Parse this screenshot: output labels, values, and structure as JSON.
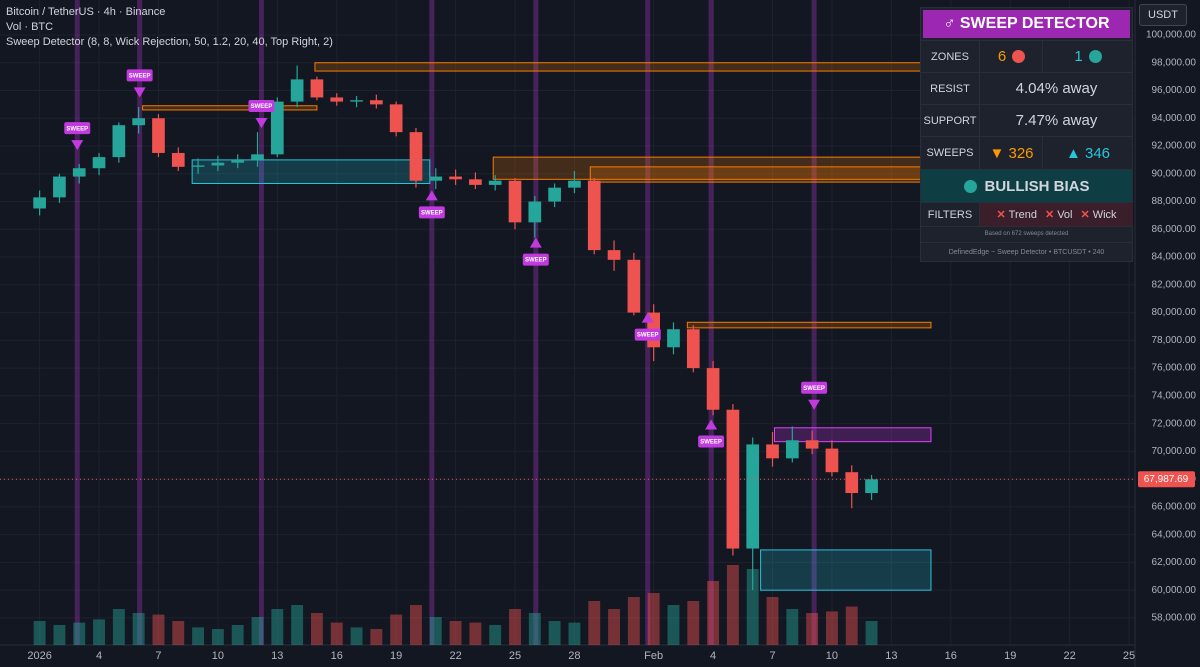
{
  "header": {
    "symbol": "Bitcoin / TetherUS · 4h · Binance",
    "volume": "Vol · BTC",
    "indicator": "Sweep Detector (8, 8, Wick Rejection, 50, 1.2, 20, 40, Top Right, 2)",
    "currency": "USDT"
  },
  "chart_data": {
    "type": "candlestick",
    "x": [
      1,
      2,
      3,
      4,
      5,
      6,
      7,
      8,
      9,
      10,
      11,
      12,
      13,
      14,
      15,
      16,
      17,
      18,
      19,
      20,
      21,
      22,
      23,
      24,
      25,
      26,
      27,
      28,
      29,
      30,
      31,
      32,
      33,
      34,
      35,
      36,
      37,
      38,
      39,
      40,
      41,
      42,
      43
    ],
    "open": [
      87500,
      88300,
      89800,
      90400,
      91200,
      93500,
      94000,
      91500,
      90500,
      90600,
      90800,
      91000,
      91400,
      95200,
      96800,
      95500,
      95200,
      95300,
      95000,
      93000,
      89500,
      89800,
      89600,
      89200,
      89500,
      86500,
      88000,
      89000,
      89500,
      84500,
      83800,
      80000,
      77500,
      78800,
      76000,
      73000,
      63000,
      70500,
      69500,
      70800,
      70200,
      68500,
      67000
    ],
    "high": [
      88800,
      90000,
      90700,
      91500,
      93700,
      94800,
      94300,
      91900,
      91100,
      91300,
      91400,
      93000,
      95500,
      97800,
      97000,
      95800,
      95600,
      95700,
      95200,
      93300,
      90400,
      90300,
      90100,
      89900,
      89700,
      88400,
      89300,
      90200,
      89700,
      85200,
      84300,
      80600,
      79300,
      79100,
      76500,
      73400,
      71000,
      71400,
      71800,
      71500,
      70800,
      69000,
      68300
    ],
    "low": [
      87000,
      87900,
      89300,
      89900,
      90800,
      92900,
      91200,
      90200,
      90000,
      90200,
      90400,
      90500,
      91200,
      94800,
      95300,
      94900,
      94800,
      94700,
      92700,
      89000,
      88900,
      89200,
      88900,
      88800,
      86000,
      85400,
      87600,
      88600,
      84200,
      83000,
      79800,
      76500,
      77000,
      75700,
      72600,
      62500,
      60000,
      68900,
      69200,
      69800,
      68200,
      65900,
      66500
    ],
    "close": [
      88300,
      89800,
      90400,
      91200,
      93500,
      94000,
      91500,
      90500,
      90600,
      90800,
      91000,
      91400,
      95200,
      96800,
      95500,
      95200,
      95300,
      95000,
      93000,
      89500,
      89800,
      89600,
      89200,
      89500,
      86500,
      88000,
      89000,
      89500,
      84500,
      83800,
      80000,
      77500,
      78800,
      76000,
      73000,
      63000,
      70500,
      69500,
      70800,
      70200,
      68500,
      67000,
      67987.69
    ],
    "volume": [
      30,
      25,
      28,
      32,
      45,
      40,
      38,
      30,
      22,
      20,
      25,
      35,
      45,
      50,
      40,
      28,
      22,
      20,
      38,
      50,
      35,
      30,
      28,
      25,
      45,
      40,
      30,
      28,
      55,
      45,
      60,
      65,
      50,
      55,
      80,
      100,
      95,
      60,
      45,
      40,
      42,
      48,
      30
    ],
    "up_color": "#26a69a",
    "down_color": "#ef5350",
    "xlim": [
      -1,
      56.3
    ],
    "ylim": [
      56050,
      102520
    ],
    "xticks": [
      {
        "value": 1,
        "label": "2026"
      },
      4,
      7,
      10,
      13,
      16,
      19,
      22,
      25,
      28,
      {
        "value": 32,
        "label": "Feb"
      },
      {
        "value": 35,
        "label": "4"
      },
      {
        "value": 38,
        "label": "7"
      },
      {
        "value": 41,
        "label": "10"
      },
      {
        "value": 44,
        "label": "13"
      },
      {
        "value": 47,
        "label": "16"
      },
      {
        "value": 50,
        "label": "19"
      },
      {
        "value": 53,
        "label": "22"
      },
      {
        "value": 56,
        "label": "25"
      }
    ],
    "yticks": [
      {
        "value": 58000,
        "label": "58,000.00"
      },
      {
        "value": 60000,
        "label": "60,000.00"
      },
      {
        "value": 62000,
        "label": "62,000.00"
      },
      {
        "value": 64000,
        "label": "64,000.00"
      },
      {
        "value": 66000,
        "label": "66,000.00"
      },
      {
        "value": 68000,
        "label": "68,000.00"
      },
      {
        "value": 70000,
        "label": "70,000.00"
      },
      {
        "value": 72000,
        "label": "72,000.00"
      },
      {
        "value": 74000,
        "label": "74,000.00"
      },
      {
        "value": 76000,
        "label": "76,000.00"
      },
      {
        "value": 78000,
        "label": "78,000.00"
      },
      {
        "value": 80000,
        "label": "80,000.00"
      },
      {
        "value": 82000,
        "label": "82,000.00"
      },
      {
        "value": 84000,
        "label": "84,000.00"
      },
      {
        "value": 86000,
        "label": "86,000.00"
      },
      {
        "value": 88000,
        "label": "88,000.00"
      },
      {
        "value": 90000,
        "label": "90,000.00"
      },
      {
        "value": 92000,
        "label": "92,000.00"
      },
      {
        "value": 94000,
        "label": "94,000.00"
      },
      {
        "value": 96000,
        "label": "96,000.00"
      },
      {
        "value": 98000,
        "label": "98,000.00"
      },
      {
        "value": 100000,
        "label": "100,000.00"
      }
    ],
    "grid": true,
    "last_price": {
      "value": 67987.69,
      "label": "67,987.69",
      "color": "#ef5350"
    },
    "zones": [
      {
        "start": 14.9,
        "end": 46,
        "low": 97400,
        "high": 98000,
        "color": "#f57c00"
      },
      {
        "start": 23.9,
        "end": 46,
        "low": 89600,
        "high": 91200,
        "color": "#f57c00"
      },
      {
        "start": 28.8,
        "end": 46,
        "low": 89400,
        "high": 90500,
        "color": "#f57c00"
      },
      {
        "start": 33.7,
        "end": 46,
        "low": 78900,
        "high": 79300,
        "color": "#f57c00"
      },
      {
        "start": 38.1,
        "end": 46,
        "low": 70700,
        "high": 71700,
        "color": "#e040fb"
      },
      {
        "start": 37.4,
        "end": 46,
        "low": 60000,
        "high": 62900,
        "color": "#26c6da"
      },
      {
        "start": 6.2,
        "end": 15,
        "low": 94600,
        "high": 94900,
        "color": "#f57c00"
      },
      {
        "start": 8.7,
        "end": 20.7,
        "low": 89300,
        "high": 91000,
        "color": "#26c6da"
      }
    ],
    "sweep_color": "#c13adf",
    "sweeps": [
      {
        "x": 2.9,
        "price": 91700,
        "direction": "down",
        "label": "SWEEP"
      },
      {
        "x": 6.05,
        "price": 95500,
        "direction": "down",
        "label": "SWEEP"
      },
      {
        "x": 12.2,
        "price": 93300,
        "direction": "down",
        "label": "SWEEP"
      },
      {
        "x": 20.8,
        "price": 88800,
        "direction": "up",
        "label": "SWEEP"
      },
      {
        "x": 26.05,
        "price": 85400,
        "direction": "up",
        "label": "SWEEP"
      },
      {
        "x": 31.7,
        "price": 80000,
        "direction": "up",
        "label": "SWEEP"
      },
      {
        "x": 34.9,
        "price": 72300,
        "direction": "up",
        "label": "SWEEP"
      },
      {
        "x": 40.1,
        "price": 73000,
        "direction": "down",
        "label": "SWEEP"
      }
    ]
  },
  "panel": {
    "title": "♂ SWEEP DETECTOR",
    "zones_label": "ZONES",
    "zones_resist": "6",
    "zones_support": "1",
    "resist_label": "RESIST",
    "resist_value": "4.04% away",
    "support_label": "SUPPORT",
    "support_value": "7.47% away",
    "sweeps_label": "SWEEPS",
    "sweeps_down": "▼ 326",
    "sweeps_up": "▲ 346",
    "bias": "BULLISH BIAS",
    "filters_label": "FILTERS",
    "filters": [
      "Trend",
      "Vol",
      "Wick"
    ],
    "note": "Based on 672 sweeps detected",
    "footer": "DefinedEdge ~ Sweep Detector • BTCUSDT • 240"
  }
}
